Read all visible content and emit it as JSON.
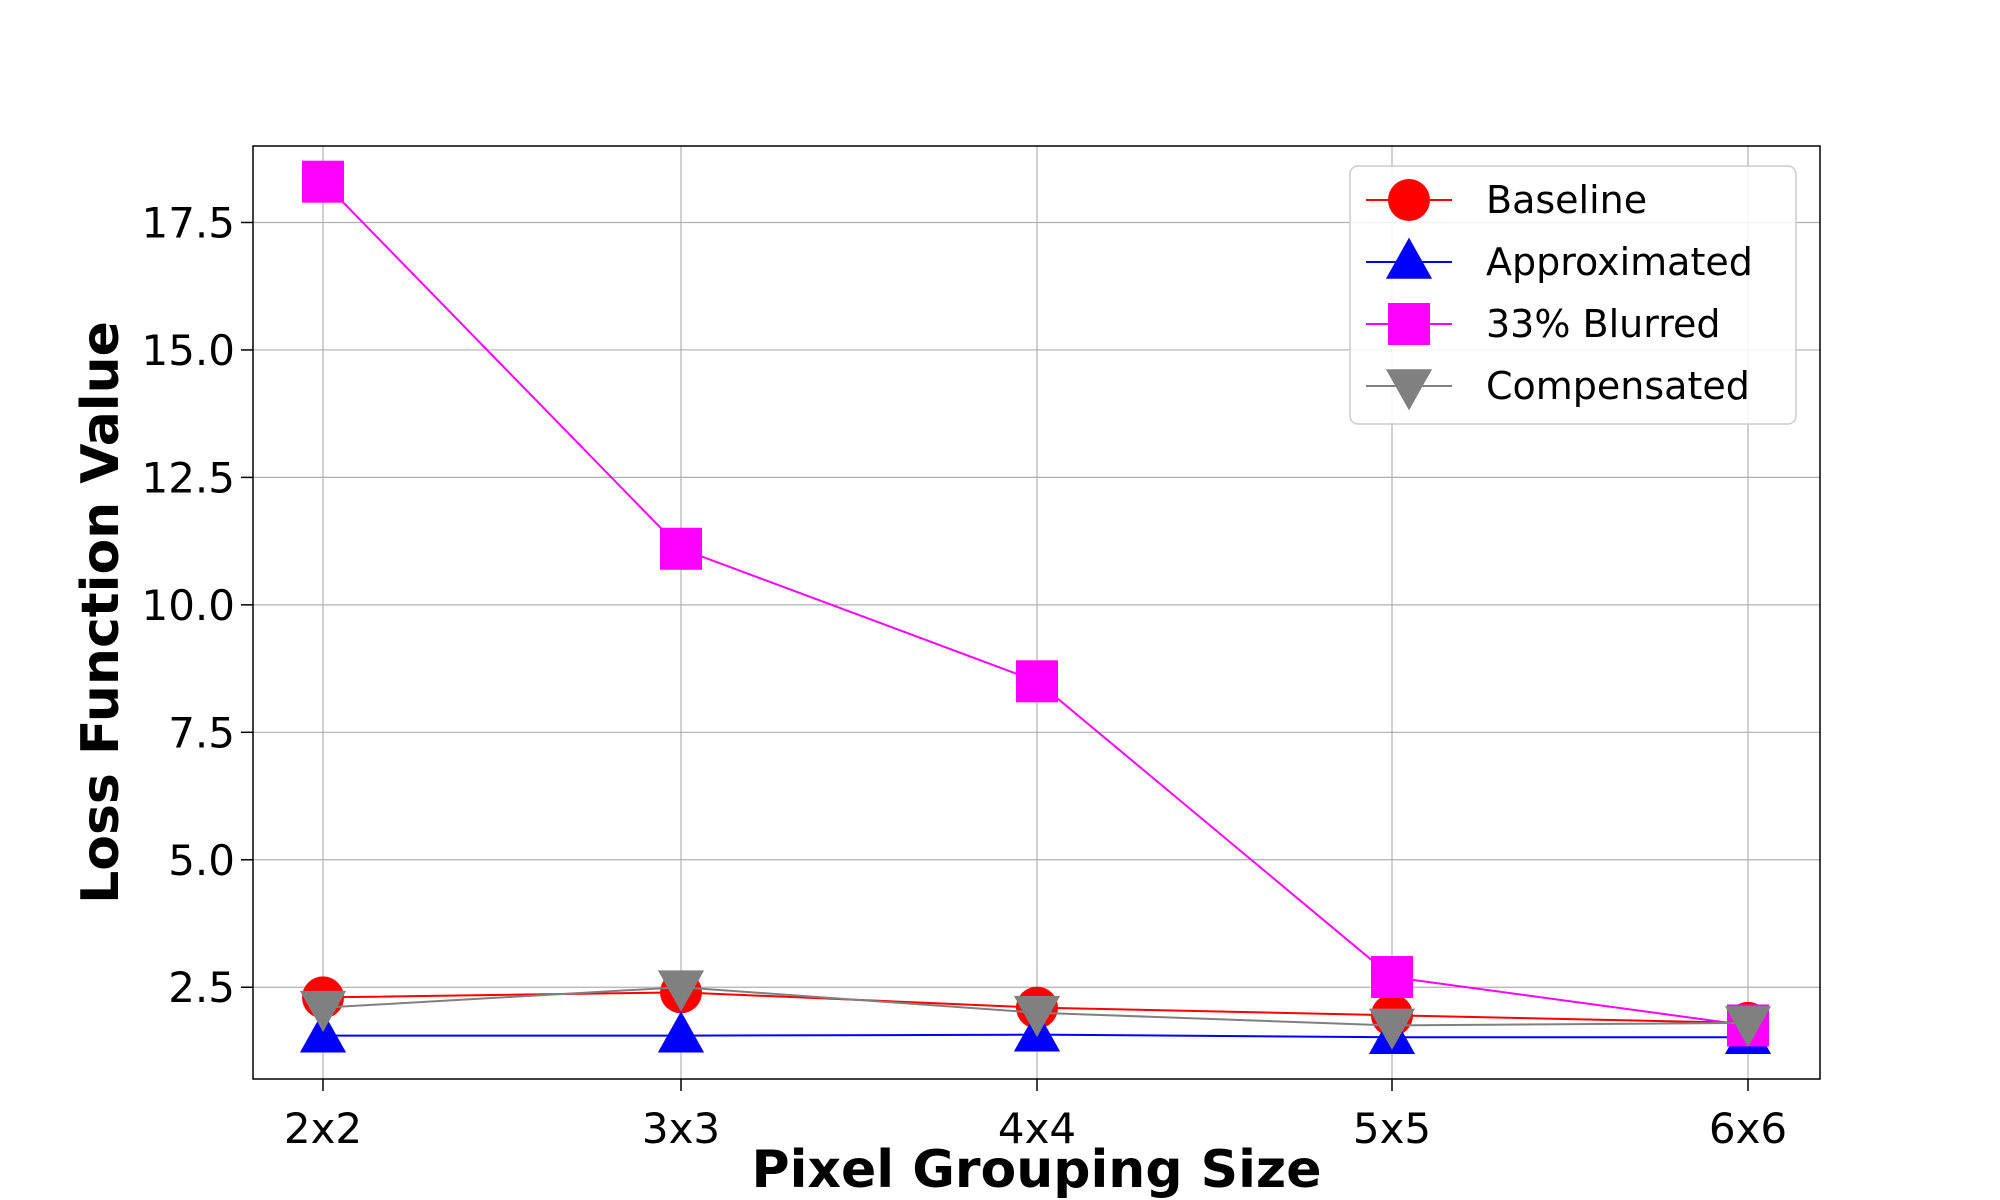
{
  "chart_data": {
    "type": "line",
    "title": "",
    "xlabel": "Pixel Grouping Size",
    "ylabel": "Loss Function Value",
    "categories": [
      "2x2",
      "3x3",
      "4x4",
      "5x5",
      "6x6"
    ],
    "ylim": [
      0.7,
      19.0
    ],
    "yticks": [
      2.5,
      5.0,
      7.5,
      10.0,
      12.5,
      15.0,
      17.5
    ],
    "ytick_labels": [
      "2.5",
      "5.0",
      "7.5",
      "10.0",
      "12.5",
      "15.0",
      "17.5"
    ],
    "grid": true,
    "legend_position": "top-right",
    "series": [
      {
        "name": "Baseline",
        "color": "#ff0000",
        "marker": "circle",
        "values": [
          2.3,
          2.4,
          2.1,
          1.95,
          1.8
        ]
      },
      {
        "name": "Approximated",
        "color": "#0000ff",
        "marker": "triangle-up",
        "values": [
          1.55,
          1.55,
          1.57,
          1.52,
          1.52
        ]
      },
      {
        "name": "33% Blurred",
        "color": "#ff00ff",
        "marker": "square",
        "values": [
          18.3,
          11.1,
          8.5,
          2.7,
          1.75
        ]
      },
      {
        "name": "Compensated",
        "color": "#808080",
        "marker": "triangle-down",
        "values": [
          2.1,
          2.5,
          2.0,
          1.75,
          1.8
        ]
      }
    ]
  }
}
